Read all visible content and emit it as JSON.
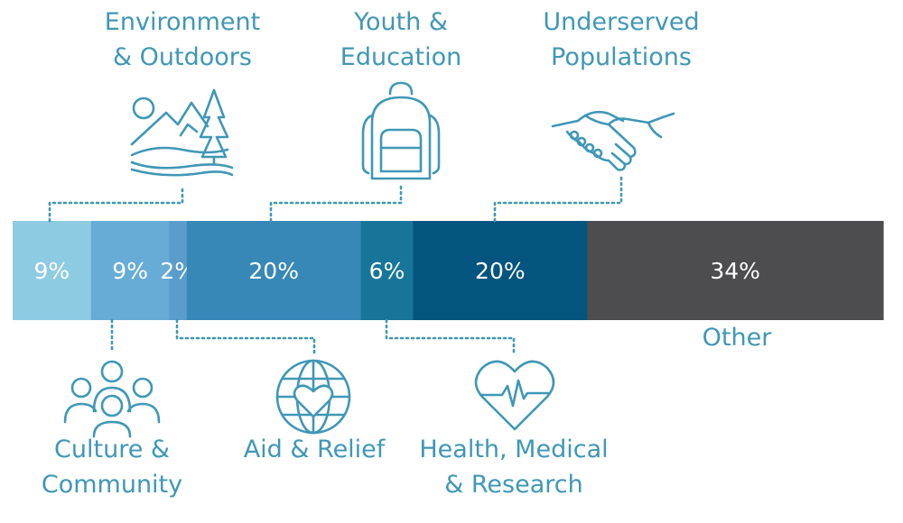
{
  "chart_data": {
    "type": "bar",
    "orientation": "horizontal-stacked-100",
    "categories": [
      "Culture & Community",
      "Environment & Outdoors",
      "Aid & Relief",
      "Youth & Education",
      "Health, Medical & Research",
      "Underserved Populations",
      "Other"
    ],
    "values": [
      9,
      9,
      2,
      20,
      6,
      20,
      34
    ],
    "value_labels": [
      "9%",
      "9%",
      "2%",
      "20%",
      "6%",
      "20%",
      "34%"
    ],
    "label_lines": [
      [
        "Culture &",
        "Community"
      ],
      [
        "Environment",
        "& Outdoors"
      ],
      [
        "Aid & Relief"
      ],
      [
        "Youth &",
        "Education"
      ],
      [
        "Health, Medical",
        "& Research"
      ],
      [
        "Underserved",
        "Populations"
      ],
      [
        "Other"
      ]
    ],
    "label_position": [
      "bottom",
      "top",
      "bottom",
      "top",
      "bottom",
      "top",
      "bottom"
    ],
    "icons": [
      "people-group-icon",
      "mountain-landscape-icon",
      "globe-heart-icon",
      "backpack-icon",
      "heart-pulse-icon",
      "handshake-icon",
      ""
    ],
    "colors": [
      "#8dcbe3",
      "#67acd6",
      "#5a9dcc",
      "#3888b7",
      "#18759a",
      "#03557f",
      "#4d4d4f"
    ],
    "label_color": "#3f97b6",
    "value_label_color": "#ffffff"
  }
}
